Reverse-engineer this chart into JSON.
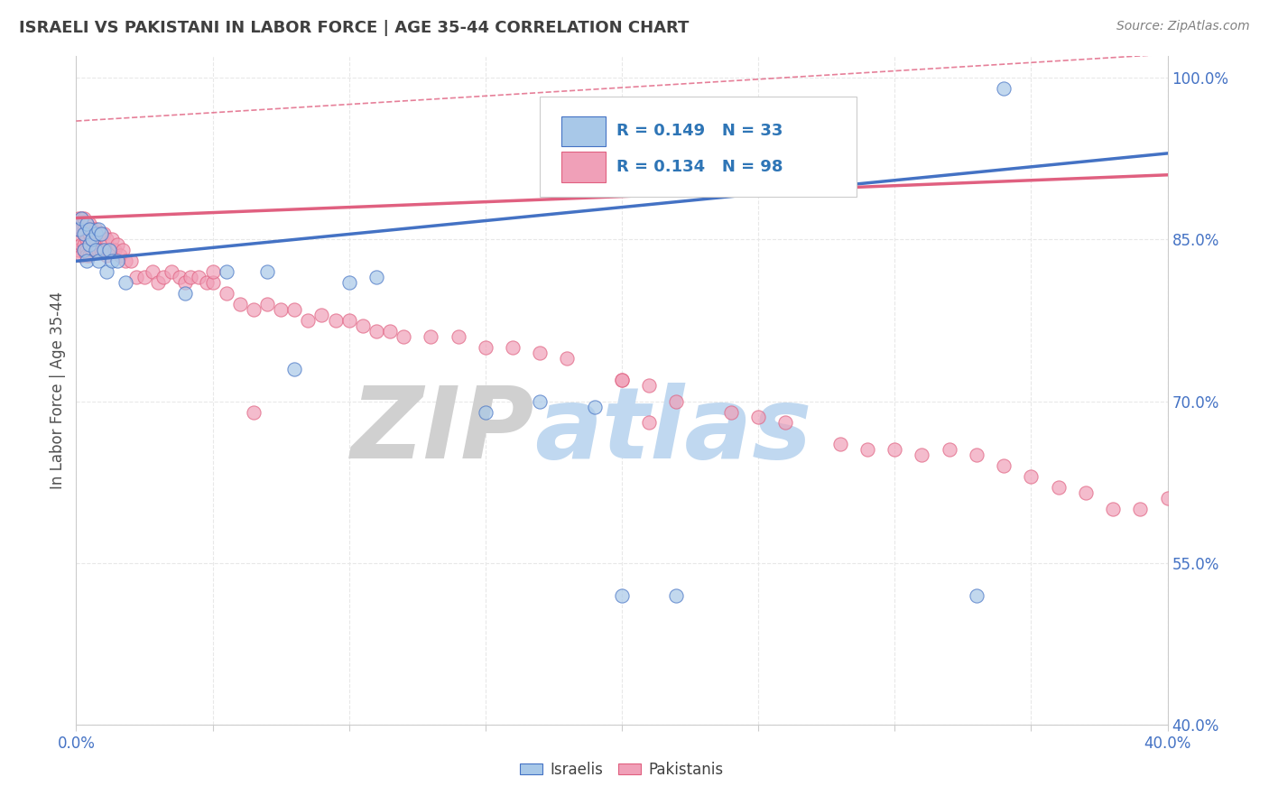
{
  "title": "ISRAELI VS PAKISTANI IN LABOR FORCE | AGE 35-44 CORRELATION CHART",
  "source_text": "Source: ZipAtlas.com",
  "ylabel": "In Labor Force | Age 35-44",
  "xlim": [
    0.0,
    0.4
  ],
  "ylim": [
    0.4,
    1.02
  ],
  "ytick_values": [
    0.4,
    0.55,
    0.7,
    0.85,
    1.0
  ],
  "israeli_color": "#a8c8e8",
  "pakistani_color": "#f0a0b8",
  "israeli_line_color": "#4472c4",
  "pakistani_line_color": "#e06080",
  "r_israeli": 0.149,
  "n_israeli": 33,
  "r_pakistani": 0.134,
  "n_pakistani": 98,
  "legend_color": "#2e75b6",
  "watermark_zip_color": "#d8d8d8",
  "watermark_atlas_color": "#c8ddf0",
  "background_color": "#ffffff",
  "grid_color": "#e8e8e8",
  "axis_color": "#cccccc",
  "tick_color": "#4472c4",
  "title_color": "#404040",
  "source_color": "#808080",
  "isr_x": [
    0.001,
    0.002,
    0.003,
    0.003,
    0.004,
    0.004,
    0.005,
    0.005,
    0.006,
    0.007,
    0.007,
    0.008,
    0.008,
    0.009,
    0.01,
    0.011,
    0.012,
    0.013,
    0.015,
    0.018,
    0.04,
    0.055,
    0.07,
    0.08,
    0.1,
    0.11,
    0.15,
    0.17,
    0.19,
    0.2,
    0.22,
    0.33,
    0.34
  ],
  "isr_y": [
    0.86,
    0.87,
    0.855,
    0.84,
    0.865,
    0.83,
    0.86,
    0.845,
    0.85,
    0.84,
    0.855,
    0.83,
    0.86,
    0.855,
    0.84,
    0.82,
    0.84,
    0.83,
    0.83,
    0.81,
    0.8,
    0.82,
    0.82,
    0.73,
    0.81,
    0.815,
    0.69,
    0.7,
    0.695,
    0.52,
    0.52,
    0.52,
    0.99
  ],
  "pak_x": [
    0.001,
    0.001,
    0.001,
    0.001,
    0.002,
    0.002,
    0.002,
    0.002,
    0.003,
    0.003,
    0.003,
    0.003,
    0.003,
    0.004,
    0.004,
    0.004,
    0.004,
    0.005,
    0.005,
    0.005,
    0.005,
    0.006,
    0.006,
    0.006,
    0.007,
    0.007,
    0.007,
    0.008,
    0.008,
    0.009,
    0.009,
    0.01,
    0.01,
    0.011,
    0.011,
    0.012,
    0.013,
    0.014,
    0.015,
    0.016,
    0.017,
    0.018,
    0.02,
    0.022,
    0.025,
    0.028,
    0.03,
    0.032,
    0.035,
    0.038,
    0.04,
    0.042,
    0.045,
    0.048,
    0.05,
    0.055,
    0.06,
    0.065,
    0.07,
    0.075,
    0.08,
    0.085,
    0.09,
    0.095,
    0.1,
    0.105,
    0.11,
    0.115,
    0.12,
    0.13,
    0.14,
    0.15,
    0.16,
    0.17,
    0.18,
    0.2,
    0.21,
    0.22,
    0.24,
    0.25,
    0.26,
    0.28,
    0.29,
    0.3,
    0.31,
    0.32,
    0.33,
    0.34,
    0.35,
    0.36,
    0.37,
    0.38,
    0.39,
    0.4,
    0.21,
    0.05,
    0.065,
    0.2
  ],
  "pak_y": [
    0.87,
    0.855,
    0.84,
    0.86,
    0.87,
    0.86,
    0.845,
    0.835,
    0.87,
    0.86,
    0.845,
    0.855,
    0.84,
    0.865,
    0.85,
    0.84,
    0.835,
    0.865,
    0.855,
    0.845,
    0.835,
    0.86,
    0.85,
    0.84,
    0.86,
    0.85,
    0.84,
    0.855,
    0.84,
    0.855,
    0.84,
    0.855,
    0.84,
    0.85,
    0.835,
    0.84,
    0.85,
    0.84,
    0.845,
    0.835,
    0.84,
    0.83,
    0.83,
    0.815,
    0.815,
    0.82,
    0.81,
    0.815,
    0.82,
    0.815,
    0.81,
    0.815,
    0.815,
    0.81,
    0.81,
    0.8,
    0.79,
    0.785,
    0.79,
    0.785,
    0.785,
    0.775,
    0.78,
    0.775,
    0.775,
    0.77,
    0.765,
    0.765,
    0.76,
    0.76,
    0.76,
    0.75,
    0.75,
    0.745,
    0.74,
    0.72,
    0.715,
    0.7,
    0.69,
    0.685,
    0.68,
    0.66,
    0.655,
    0.655,
    0.65,
    0.655,
    0.65,
    0.64,
    0.63,
    0.62,
    0.615,
    0.6,
    0.6,
    0.61,
    0.68,
    0.82,
    0.69,
    0.72
  ]
}
